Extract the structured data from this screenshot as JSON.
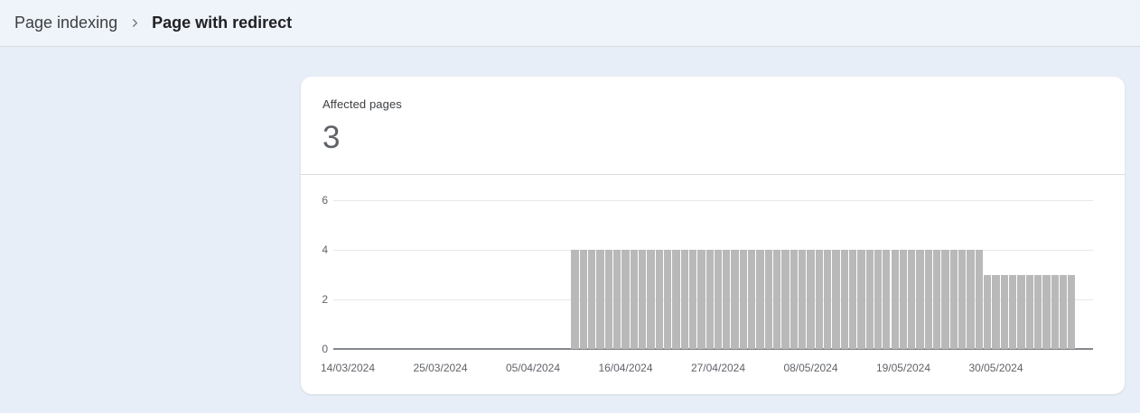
{
  "breadcrumb": {
    "parent": "Page indexing",
    "current": "Page with redirect"
  },
  "card": {
    "metric_label": "Affected pages",
    "metric_value": "3"
  },
  "chart_data": {
    "type": "bar",
    "title": "Affected pages",
    "xlabel": "",
    "ylabel": "",
    "ylim": [
      0,
      6
    ],
    "yticks": [
      0,
      2,
      4,
      6
    ],
    "xticks": [
      "14/03/2024",
      "25/03/2024",
      "05/04/2024",
      "16/04/2024",
      "27/04/2024",
      "08/05/2024",
      "19/05/2024",
      "30/05/2024"
    ],
    "axis_start_date": "14/03/2024",
    "tick_interval_days": 11,
    "date_format": "dd/mm/yyyy",
    "grid": true,
    "legend_position": "none",
    "series": [
      {
        "name": "Affected pages",
        "segments": [
          {
            "from": "10/04/2024",
            "to": "28/05/2024",
            "value": 4,
            "days": 49
          },
          {
            "from": "29/05/2024",
            "to": "08/06/2024",
            "value": 3,
            "days": 11
          }
        ]
      }
    ]
  },
  "colors": {
    "page_background": "#e8eef7",
    "topbar_background": "#eff3fa",
    "divider": "#dadce0",
    "card_background": "#ffffff",
    "bar_fill": "#b9b9b9",
    "axis_text": "#5f6368",
    "gridline": "#e7e7e7",
    "zero_axis": "#84888c"
  }
}
